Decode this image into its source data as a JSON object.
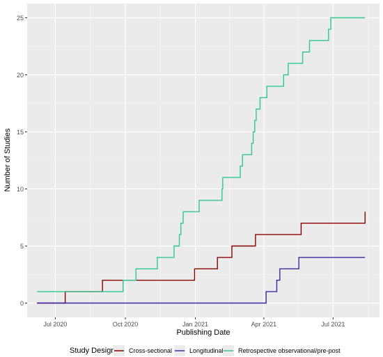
{
  "chart_data": {
    "type": "line",
    "step": true,
    "xlabel": "Publishing Date",
    "ylabel": "Number of Studies",
    "x_ticks": [
      "2020-07-01",
      "2020-10-01",
      "2021-01-01",
      "2021-04-01",
      "2021-07-01"
    ],
    "x_tick_labels": [
      "Jul 2020",
      "Oct 2020",
      "Jan 2021",
      "Apr 2021",
      "Jul 2021"
    ],
    "xlim": [
      "2020-05-25",
      "2021-08-31"
    ],
    "y_ticks": [
      0,
      5,
      10,
      15,
      20,
      25
    ],
    "ylim": [
      -1.25,
      26.25
    ],
    "grid": true,
    "legend": {
      "title": "Study Design",
      "position": "bottom"
    },
    "series": [
      {
        "name": "Cross-sectional",
        "color": "#8b0000",
        "points": [
          [
            "2020-06-07",
            0
          ],
          [
            "2020-07-14",
            1
          ],
          [
            "2020-09-01",
            2
          ],
          [
            "2020-10-05",
            2
          ],
          [
            "2020-12-31",
            3
          ],
          [
            "2021-01-30",
            4
          ],
          [
            "2021-02-18",
            5
          ],
          [
            "2021-03-21",
            6
          ],
          [
            "2021-05-20",
            7
          ],
          [
            "2021-08-12",
            7
          ],
          [
            "2021-08-12",
            8
          ]
        ]
      },
      {
        "name": "Longitudinal",
        "color": "#3a2aa8",
        "points": [
          [
            "2020-06-07",
            0
          ],
          [
            "2021-04-04",
            1
          ],
          [
            "2021-04-18",
            2
          ],
          [
            "2021-04-22",
            3
          ],
          [
            "2021-05-17",
            4
          ],
          [
            "2021-08-12",
            4
          ]
        ]
      },
      {
        "name": "Retrospective observational/pre-post",
        "color": "#2ec98e",
        "points": [
          [
            "2020-06-07",
            1
          ],
          [
            "2020-09-28",
            2
          ],
          [
            "2020-10-03",
            2
          ],
          [
            "2020-10-15",
            3
          ],
          [
            "2020-11-12",
            4
          ],
          [
            "2020-12-04",
            5
          ],
          [
            "2020-12-11",
            6
          ],
          [
            "2020-12-13",
            7
          ],
          [
            "2020-12-16",
            8
          ],
          [
            "2021-01-06",
            9
          ],
          [
            "2021-02-05",
            10
          ],
          [
            "2021-02-06",
            11
          ],
          [
            "2021-03-01",
            12
          ],
          [
            "2021-03-04",
            13
          ],
          [
            "2021-03-16",
            14
          ],
          [
            "2021-03-18",
            15
          ],
          [
            "2021-03-20",
            16
          ],
          [
            "2021-03-22",
            17
          ],
          [
            "2021-03-27",
            18
          ],
          [
            "2021-04-05",
            19
          ],
          [
            "2021-04-27",
            20
          ],
          [
            "2021-05-03",
            21
          ],
          [
            "2021-05-22",
            22
          ],
          [
            "2021-05-31",
            23
          ],
          [
            "2021-06-25",
            24
          ],
          [
            "2021-06-28",
            25
          ],
          [
            "2021-08-12",
            25
          ]
        ]
      }
    ]
  }
}
